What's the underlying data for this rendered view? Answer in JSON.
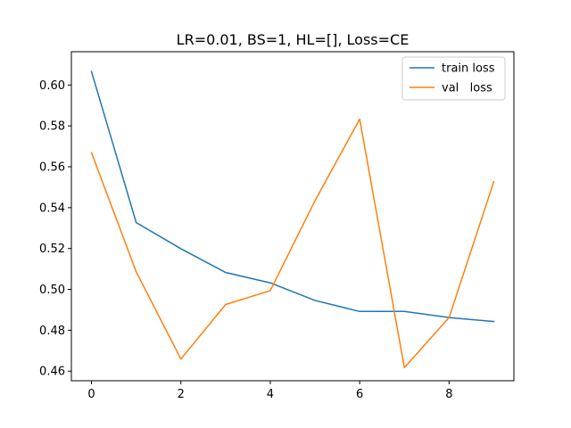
{
  "chart_data": {
    "type": "line",
    "title": "LR=0.01, BS=1, HL=[], Loss=CE",
    "xlabel": "",
    "ylabel": "",
    "x": [
      0,
      1,
      2,
      3,
      4,
      5,
      6,
      7,
      8,
      9
    ],
    "xlim": [
      -0.45,
      9.45
    ],
    "ylim": [
      0.4553,
      0.6163
    ],
    "xticks": [
      0,
      2,
      4,
      6,
      8
    ],
    "xtick_labels": [
      "0",
      "2",
      "4",
      "6",
      "8"
    ],
    "yticks": [
      0.46,
      0.48,
      0.5,
      0.52,
      0.54,
      0.56,
      0.58,
      0.6
    ],
    "ytick_labels": [
      "0.46",
      "0.48",
      "0.50",
      "0.52",
      "0.54",
      "0.56",
      "0.58",
      "0.60"
    ],
    "grid": false,
    "legend_position": "top-right",
    "series": [
      {
        "name": "train loss",
        "color": "#1f77b4",
        "values": [
          0.6066,
          0.5327,
          0.5199,
          0.5083,
          0.5032,
          0.4946,
          0.4892,
          0.4892,
          0.4862,
          0.4843
        ]
      },
      {
        "name": "val   loss",
        "color": "#ff7f0e",
        "values": [
          0.5669,
          0.5086,
          0.4659,
          0.4926,
          0.4994,
          0.5434,
          0.5833,
          0.4617,
          0.4862,
          0.5527
        ]
      }
    ]
  }
}
